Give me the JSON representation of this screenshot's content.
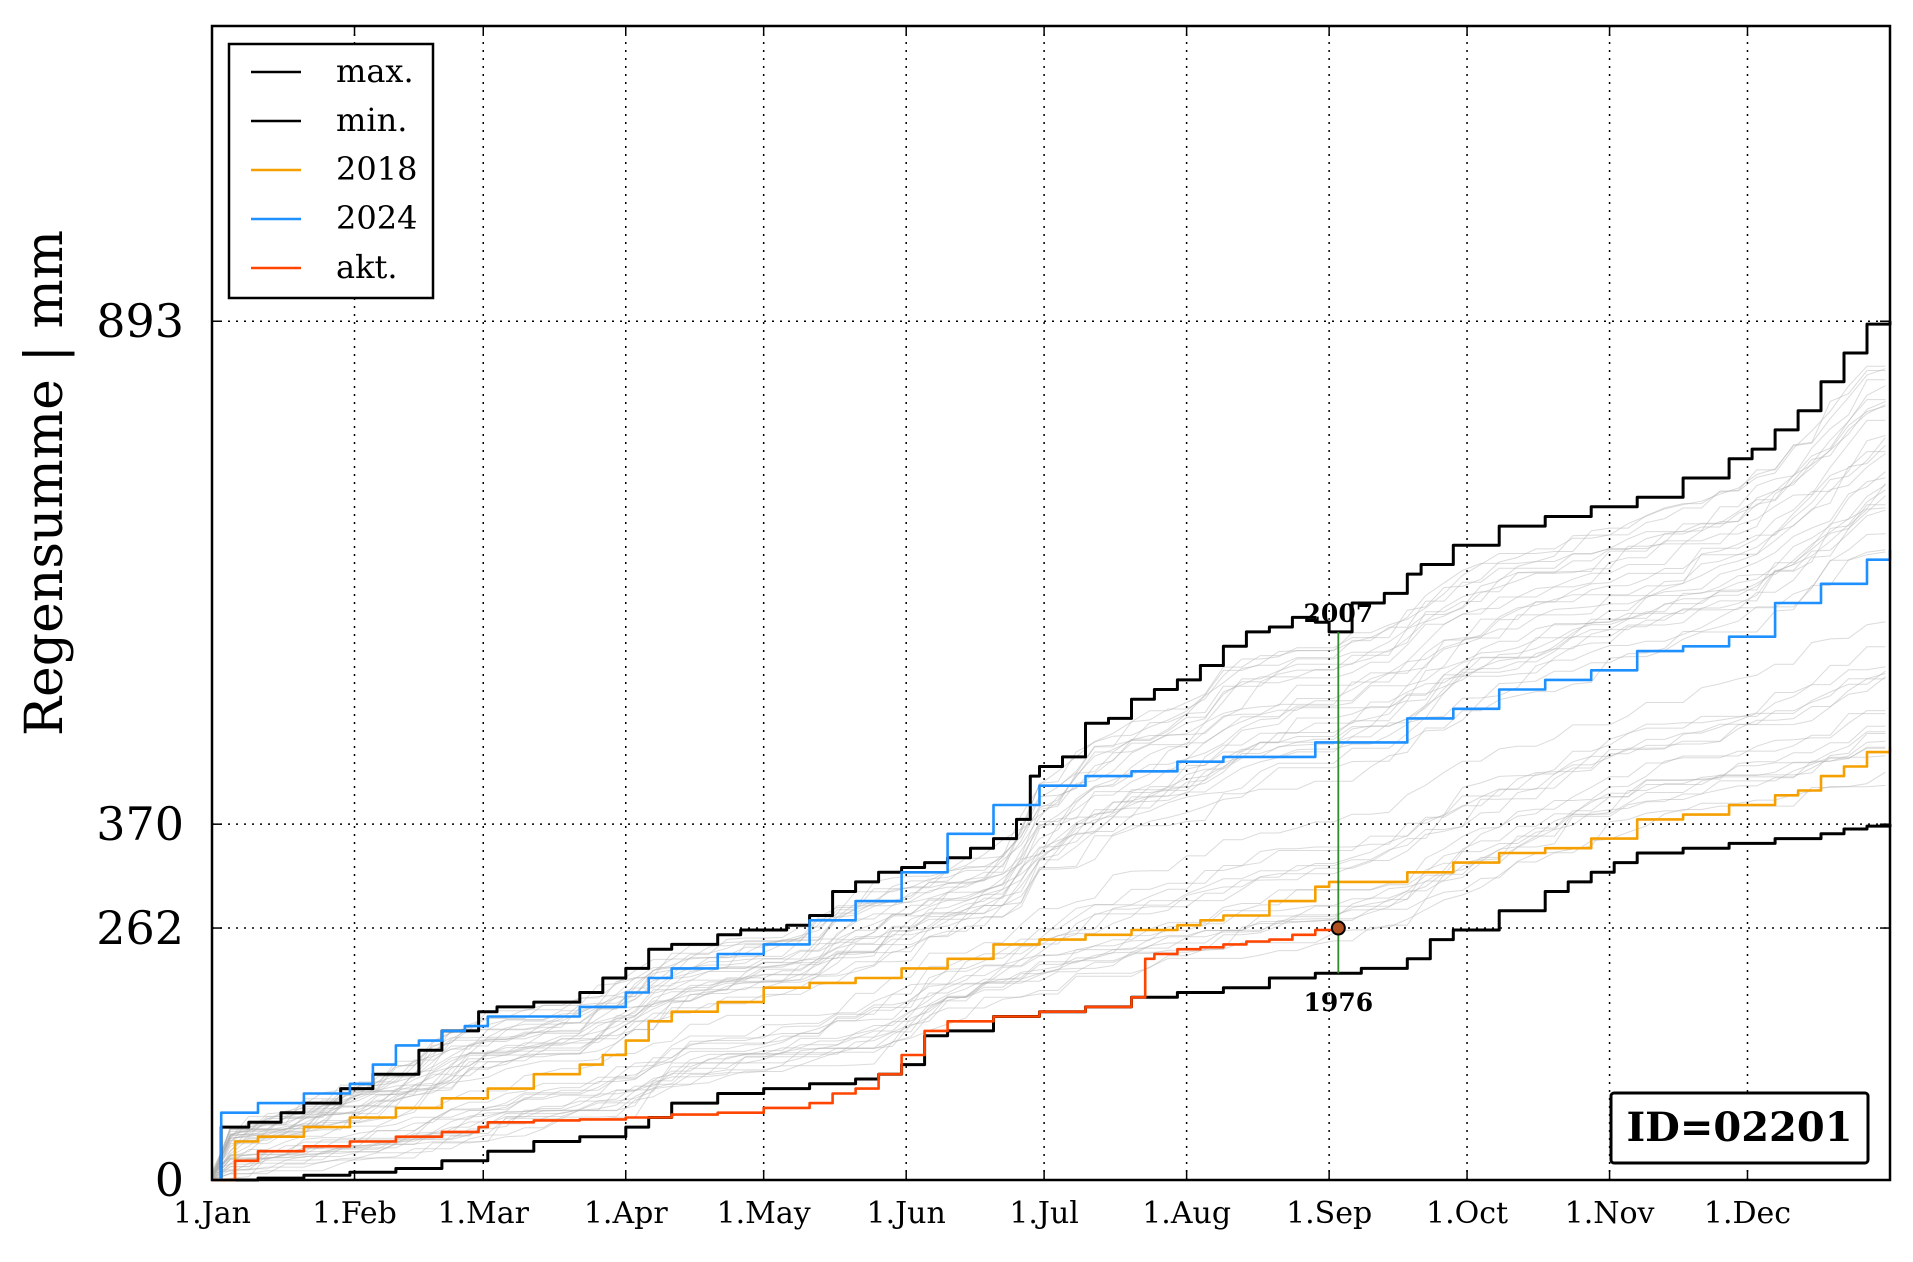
{
  "chart_data": {
    "type": "line",
    "title": "",
    "xlabel": "",
    "ylabel": "Regensumme | mm",
    "xlim": [
      0,
      365
    ],
    "ylim": [
      0,
      1200
    ],
    "x_ticks": [
      {
        "day": 0,
        "label": "1.Jan"
      },
      {
        "day": 31,
        "label": "1.Feb"
      },
      {
        "day": 59,
        "label": "1.Mar"
      },
      {
        "day": 90,
        "label": "1.Apr"
      },
      {
        "day": 120,
        "label": "1.May"
      },
      {
        "day": 151,
        "label": "1.Jun"
      },
      {
        "day": 181,
        "label": "1.Jul"
      },
      {
        "day": 212,
        "label": "1.Aug"
      },
      {
        "day": 243,
        "label": "1.Sep"
      },
      {
        "day": 273,
        "label": "1.Oct"
      },
      {
        "day": 304,
        "label": "1.Nov"
      },
      {
        "day": 334,
        "label": "1.Dec"
      }
    ],
    "y_ticks": [
      {
        "value": 0,
        "label": "0"
      },
      {
        "value": 262,
        "label": "262"
      },
      {
        "value": 370,
        "label": "370"
      },
      {
        "value": 893,
        "label": "893"
      }
    ],
    "grid": "dotted",
    "legend_position": "top-left",
    "station_label": "ID=02201",
    "current_point": {
      "day": 245,
      "value": 262,
      "color": "#b05020"
    },
    "range_marker": {
      "day": 245,
      "top_value": 570,
      "bottom_value": 215,
      "top_year": "2007",
      "bottom_year": "1976"
    },
    "series": [
      {
        "name": "max.",
        "color": "#000000",
        "x": [
          0,
          2,
          8,
          15,
          20,
          28,
          35,
          45,
          50,
          58,
          62,
          70,
          80,
          85,
          90,
          95,
          100,
          110,
          115,
          125,
          130,
          135,
          140,
          145,
          150,
          155,
          160,
          165,
          170,
          175,
          178,
          180,
          185,
          190,
          195,
          200,
          205,
          210,
          215,
          220,
          225,
          230,
          235,
          240,
          243,
          248,
          255,
          260,
          263,
          270,
          280,
          290,
          300,
          310,
          320,
          330,
          335,
          340,
          345,
          350,
          355,
          360,
          365
        ],
        "y": [
          0,
          55,
          60,
          70,
          80,
          95,
          110,
          135,
          155,
          175,
          180,
          185,
          195,
          210,
          220,
          240,
          245,
          255,
          260,
          265,
          275,
          300,
          310,
          320,
          325,
          330,
          335,
          345,
          355,
          375,
          420,
          430,
          440,
          475,
          480,
          500,
          510,
          520,
          535,
          555,
          570,
          575,
          585,
          580,
          570,
          600,
          610,
          630,
          640,
          660,
          680,
          690,
          700,
          710,
          730,
          750,
          760,
          780,
          800,
          830,
          860,
          890,
          893
        ]
      },
      {
        "name": "min.",
        "color": "#000000",
        "x": [
          0,
          10,
          20,
          30,
          40,
          50,
          60,
          70,
          80,
          90,
          95,
          100,
          110,
          120,
          130,
          140,
          145,
          150,
          155,
          160,
          170,
          180,
          190,
          200,
          210,
          220,
          230,
          240,
          250,
          260,
          265,
          270,
          280,
          290,
          295,
          300,
          305,
          310,
          320,
          330,
          340,
          350,
          355,
          360,
          365
        ],
        "y": [
          0,
          2,
          5,
          8,
          12,
          20,
          30,
          40,
          45,
          55,
          65,
          80,
          90,
          95,
          100,
          105,
          110,
          120,
          150,
          155,
          170,
          175,
          180,
          190,
          195,
          200,
          210,
          215,
          220,
          230,
          250,
          260,
          280,
          300,
          310,
          320,
          330,
          340,
          345,
          350,
          355,
          360,
          365,
          368,
          370
        ]
      },
      {
        "name": "2018",
        "color": "#f5a000",
        "x": [
          0,
          5,
          10,
          20,
          30,
          40,
          50,
          60,
          70,
          80,
          85,
          90,
          95,
          100,
          110,
          120,
          130,
          140,
          150,
          160,
          170,
          180,
          190,
          200,
          210,
          215,
          220,
          230,
          240,
          243,
          250,
          260,
          270,
          280,
          290,
          300,
          310,
          320,
          330,
          340,
          345,
          350,
          355,
          360,
          365
        ],
        "y": [
          0,
          40,
          45,
          55,
          65,
          75,
          85,
          95,
          110,
          120,
          130,
          145,
          165,
          175,
          185,
          200,
          205,
          210,
          220,
          230,
          245,
          250,
          255,
          260,
          265,
          270,
          275,
          290,
          305,
          310,
          310,
          320,
          330,
          340,
          345,
          355,
          375,
          380,
          390,
          400,
          405,
          420,
          430,
          445,
          450
        ]
      },
      {
        "name": "2024",
        "color": "#1e90ff",
        "x": [
          0,
          2,
          10,
          20,
          30,
          35,
          40,
          45,
          50,
          55,
          60,
          70,
          80,
          90,
          95,
          100,
          110,
          120,
          130,
          140,
          150,
          160,
          170,
          180,
          190,
          200,
          210,
          220,
          240,
          260,
          270,
          280,
          290,
          300,
          310,
          320,
          330,
          340,
          350,
          360,
          365
        ],
        "y": [
          0,
          70,
          80,
          90,
          100,
          120,
          140,
          145,
          155,
          160,
          170,
          170,
          180,
          195,
          210,
          220,
          235,
          245,
          270,
          290,
          320,
          360,
          390,
          410,
          420,
          425,
          435,
          440,
          455,
          480,
          490,
          510,
          520,
          530,
          550,
          555,
          565,
          600,
          620,
          645,
          655
        ]
      },
      {
        "name": "akt.",
        "color": "#ff4500",
        "x": [
          0,
          5,
          10,
          20,
          30,
          40,
          50,
          58,
          60,
          70,
          80,
          90,
          100,
          110,
          120,
          130,
          135,
          140,
          145,
          150,
          155,
          160,
          170,
          180,
          190,
          200,
          203,
          205,
          210,
          215,
          220,
          225,
          230,
          235,
          240,
          245
        ],
        "y": [
          0,
          20,
          30,
          35,
          40,
          45,
          50,
          55,
          60,
          62,
          63,
          65,
          68,
          70,
          75,
          80,
          90,
          95,
          110,
          130,
          155,
          165,
          170,
          175,
          180,
          190,
          230,
          235,
          240,
          242,
          245,
          248,
          250,
          255,
          260,
          262
        ]
      }
    ]
  }
}
